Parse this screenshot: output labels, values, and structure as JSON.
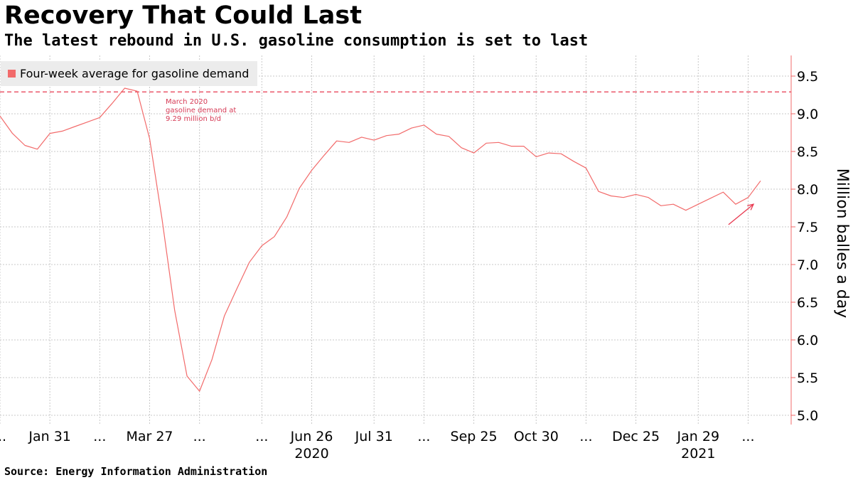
{
  "header": {
    "title": "Recovery That Could Last",
    "subtitle": "The latest rebound in U.S. gasoline consumption is set to last"
  },
  "footer": {
    "source": "Source: Energy Information Administration"
  },
  "colors": {
    "series": "#f26b6b",
    "reference": "#e8384f",
    "annotation": "#d63a55",
    "grid": "#c8c8c8",
    "legend_bg": "#ececec"
  },
  "chart_data": {
    "type": "line",
    "title": "Recovery That Could Last",
    "subtitle": "The latest rebound in U.S. gasoline consumption is set to last",
    "ylabel": "Million balles a day",
    "ylim": [
      4.95,
      9.8
    ],
    "yticks": [
      "5.0",
      "5.5",
      "6.0",
      "6.5",
      "7.0",
      "7.5",
      "8.0",
      "8.5",
      "9.0",
      "9.5"
    ],
    "grid": true,
    "legend_position": "top-left",
    "x_range": [
      "2020-01-03",
      "2021-03-05"
    ],
    "xticks": [
      {
        "date": "2020-01-03",
        "label": "..."
      },
      {
        "date": "2020-01-31",
        "label": "Jan 31"
      },
      {
        "date": "2020-02-28",
        "label": "..."
      },
      {
        "date": "2020-03-27",
        "label": "Mar 27"
      },
      {
        "date": "2020-04-24",
        "label": "..."
      },
      {
        "date": "2020-05-29",
        "label": "..."
      },
      {
        "date": "2020-06-26",
        "label": "Jun 26"
      },
      {
        "date": "2020-07-31",
        "label": "Jul 31"
      },
      {
        "date": "2020-08-28",
        "label": "..."
      },
      {
        "date": "2020-09-25",
        "label": "Sep 25"
      },
      {
        "date": "2020-10-30",
        "label": "Oct 30"
      },
      {
        "date": "2020-11-27",
        "label": "..."
      },
      {
        "date": "2020-12-25",
        "label": "Dec 25"
      },
      {
        "date": "2021-01-29",
        "label": "Jan 29"
      },
      {
        "date": "2021-02-26",
        "label": "..."
      }
    ],
    "year_labels": [
      {
        "date": "2020-06-26",
        "label": "2020"
      },
      {
        "date": "2021-01-29",
        "label": "2021"
      }
    ],
    "series": [
      {
        "name": "Four-week average for gasoline demand",
        "x": [
          "2020-01-03",
          "2020-01-10",
          "2020-01-17",
          "2020-01-24",
          "2020-01-31",
          "2020-02-07",
          "2020-02-14",
          "2020-02-21",
          "2020-02-28",
          "2020-03-06",
          "2020-03-13",
          "2020-03-20",
          "2020-03-27",
          "2020-04-03",
          "2020-04-10",
          "2020-04-17",
          "2020-04-24",
          "2020-05-01",
          "2020-05-08",
          "2020-05-15",
          "2020-05-22",
          "2020-05-29",
          "2020-06-05",
          "2020-06-12",
          "2020-06-19",
          "2020-06-26",
          "2020-07-03",
          "2020-07-10",
          "2020-07-17",
          "2020-07-24",
          "2020-07-31",
          "2020-08-07",
          "2020-08-14",
          "2020-08-21",
          "2020-08-28",
          "2020-09-04",
          "2020-09-11",
          "2020-09-18",
          "2020-09-25",
          "2020-10-02",
          "2020-10-09",
          "2020-10-16",
          "2020-10-23",
          "2020-10-30",
          "2020-11-06",
          "2020-11-13",
          "2020-11-20",
          "2020-11-27",
          "2020-12-04",
          "2020-12-11",
          "2020-12-18",
          "2020-12-25",
          "2021-01-01",
          "2021-01-08",
          "2021-01-15",
          "2021-01-22",
          "2021-01-29",
          "2021-02-05",
          "2021-02-12",
          "2021-02-19",
          "2021-02-26",
          "2021-03-05"
        ],
        "values": [
          8.97,
          8.74,
          8.58,
          8.53,
          8.74,
          8.77,
          8.83,
          8.89,
          8.95,
          9.14,
          9.34,
          9.3,
          8.67,
          7.6,
          6.4,
          5.52,
          5.32,
          5.74,
          6.32,
          6.68,
          7.03,
          7.25,
          7.37,
          7.63,
          8.01,
          8.25,
          8.45,
          8.64,
          8.62,
          8.69,
          8.65,
          8.71,
          8.73,
          8.81,
          8.85,
          8.73,
          8.7,
          8.55,
          8.48,
          8.61,
          8.62,
          8.57,
          8.57,
          8.43,
          8.48,
          8.47,
          8.37,
          8.28,
          7.97,
          7.91,
          7.89,
          7.93,
          7.89,
          7.78,
          7.8,
          7.72,
          7.8,
          7.88,
          7.96,
          7.8,
          7.89,
          8.11
        ]
      }
    ],
    "reference_line": {
      "value": 9.29,
      "annotation": [
        "March 2020",
        "gasoline demand at",
        "9.29 million b/d"
      ],
      "annotation_date": "2020-04-03",
      "annotation_value": 9.13
    },
    "trend_arrow": {
      "from": {
        "date": "2021-02-15",
        "value": 7.53
      },
      "to": {
        "date": "2021-03-01",
        "value": 7.8
      }
    }
  }
}
